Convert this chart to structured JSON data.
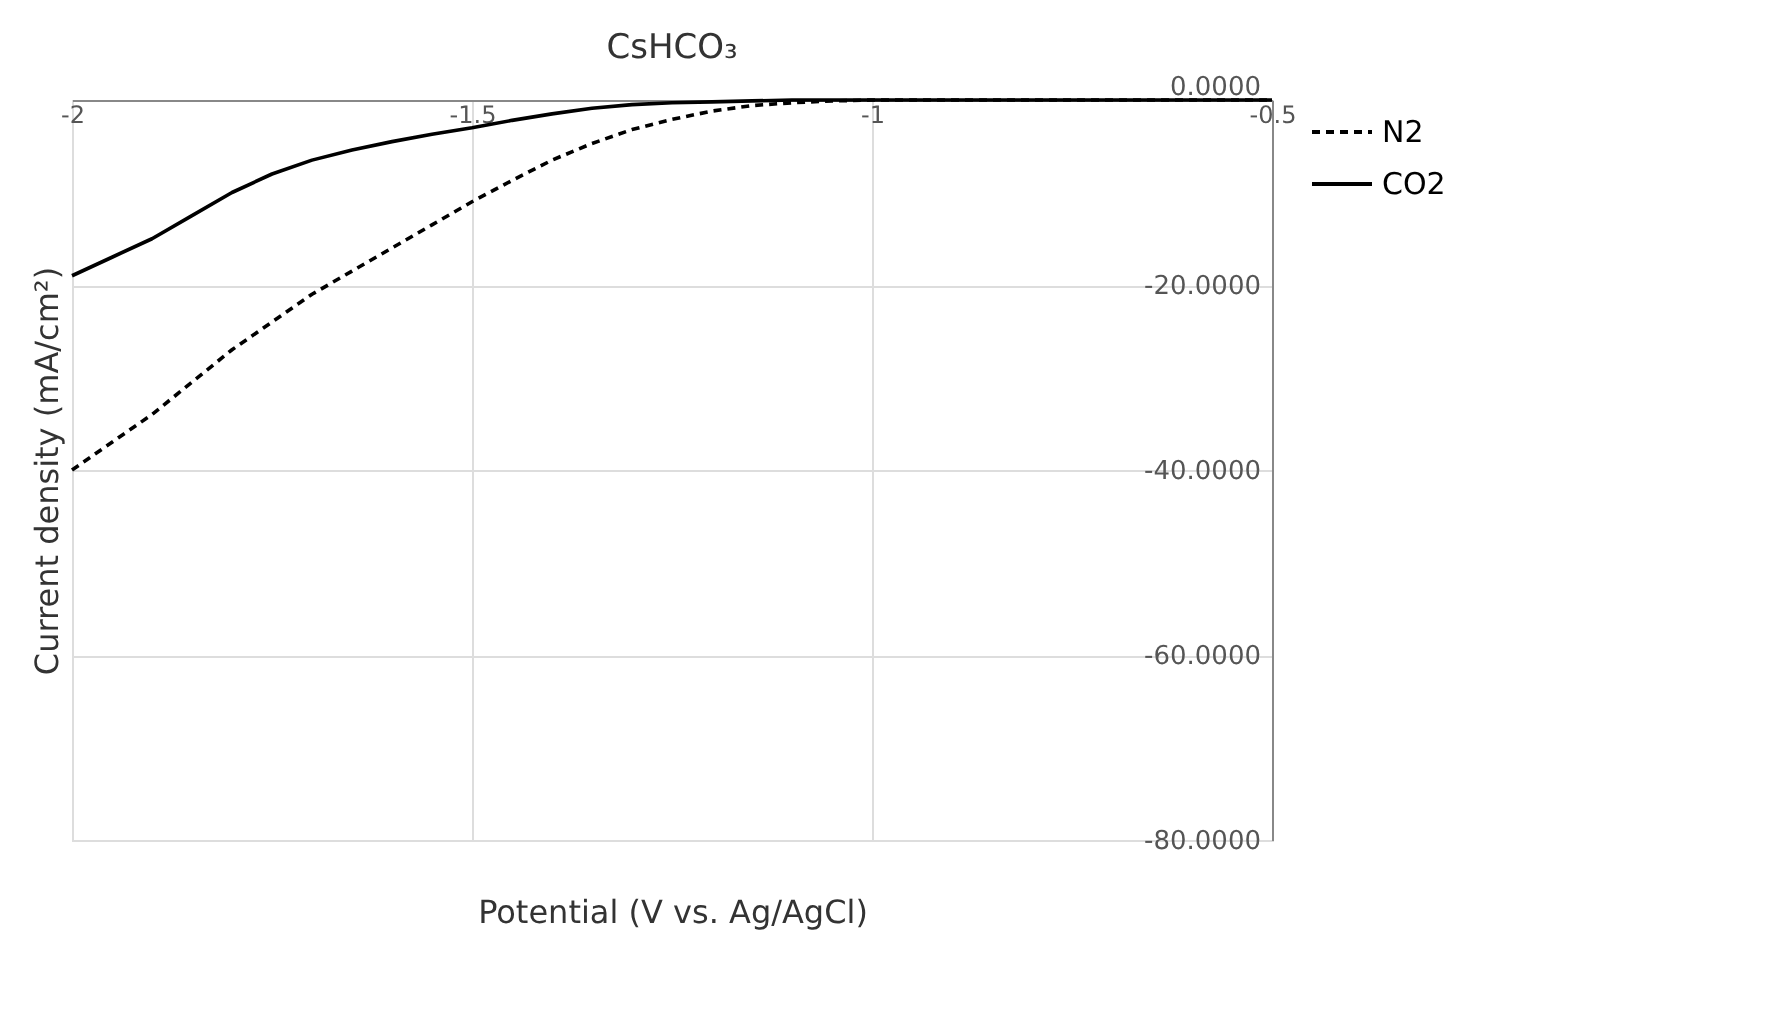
{
  "chart_data": {
    "type": "line",
    "title": "CsHCO₃",
    "xlabel": "Potential (V vs. Ag/AgCl)",
    "ylabel": "Current density (mA/cm²)",
    "x": [
      -2,
      -1.95,
      -1.9,
      -1.85,
      -1.8,
      -1.75,
      -1.7,
      -1.65,
      -1.6,
      -1.55,
      -1.5,
      -1.45,
      -1.4,
      -1.35,
      -1.3,
      -1.25,
      -1.2,
      -1.15,
      -1.1,
      -1.05,
      -1,
      -0.9,
      -0.8,
      -0.7,
      -0.6,
      -0.5
    ],
    "series": [
      {
        "name": "N2",
        "color": "#000000",
        "line_style": "dashed",
        "values": [
          -40,
          -37,
          -34,
          -30.5,
          -27,
          -24,
          -21,
          -18.5,
          -16,
          -13.5,
          -11,
          -8.7,
          -6.5,
          -4.7,
          -3.2,
          -2.1,
          -1.2,
          -0.6,
          -0.3,
          -0.1,
          0,
          0,
          0,
          0,
          0,
          0
        ]
      },
      {
        "name": "CO2",
        "color": "#000000",
        "line_style": "solid",
        "values": [
          -19,
          -17,
          -15,
          -12.5,
          -10,
          -8,
          -6.5,
          -5.4,
          -4.5,
          -3.7,
          -3,
          -2.2,
          -1.5,
          -0.9,
          -0.5,
          -0.3,
          -0.2,
          -0.1,
          0,
          0,
          0,
          0,
          0,
          0,
          0,
          0
        ]
      }
    ],
    "xlim": [
      -2,
      -0.5
    ],
    "xticks": [
      -2,
      -1.5,
      -1,
      -0.5
    ],
    "ylim": [
      -80,
      0
    ],
    "yticks": [
      {
        "value": 0,
        "label": "0.0000"
      },
      {
        "value": -20,
        "label": "-20.0000"
      },
      {
        "value": -40,
        "label": "-40.0000"
      },
      {
        "value": -60,
        "label": "-60.0000"
      },
      {
        "value": -80,
        "label": "-80.0000"
      }
    ],
    "grid": true,
    "legend": "right",
    "marker": "none"
  }
}
